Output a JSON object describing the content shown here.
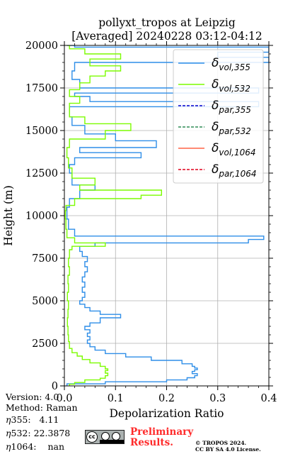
{
  "title": {
    "line1": "pollyxt_tropos at Leipzig",
    "line2": "[Averaged] 20240228 03:12-04:12"
  },
  "footer": {
    "version": "Version: 4.0",
    "method": "Method: Raman",
    "eta355_label": "355:",
    "eta355_value": "4.11",
    "eta532_label": "532:",
    "eta532_value": "22.3878",
    "eta1064_label": "1064:",
    "eta1064_value": "nan",
    "preliminary_line1": "Preliminary",
    "preliminary_line2": "Results.",
    "copyright_line1": "© TROPOS 2024.",
    "copyright_line2": "CC BY SA 4.0 License."
  },
  "colors": {
    "vol355": "#2e8ee8",
    "vol532": "#7cfc00",
    "par355": "#0000cd",
    "par532": "#2e8b57",
    "vol1064": "#ff6347",
    "par1064": "#e0001b"
  },
  "chart_data": {
    "type": "line",
    "xlabel": "Depolarization Ratio",
    "ylabel": "Height (m)",
    "xlim": [
      0,
      0.4
    ],
    "ylim": [
      0,
      20000
    ],
    "xticks": [
      "0.0",
      "0.1",
      "0.2",
      "0.3",
      "0.4"
    ],
    "yticks": [
      "0",
      "2500",
      "5000",
      "7500",
      "10000",
      "12500",
      "15000",
      "17500",
      "20000"
    ],
    "grid": true,
    "legend_position": "top-right",
    "legend": [
      {
        "key": "vol355",
        "base": "δ",
        "sub": "vol,355",
        "style": "solid"
      },
      {
        "key": "vol532",
        "base": "δ",
        "sub": "vol,532",
        "style": "solid"
      },
      {
        "key": "par355",
        "base": "δ",
        "sub": "par,355",
        "style": "dashed"
      },
      {
        "key": "par532",
        "base": "δ",
        "sub": "par,532",
        "style": "dashed"
      },
      {
        "key": "vol1064",
        "base": "δ",
        "sub": "vol,1064",
        "style": "solid"
      },
      {
        "key": "par1064",
        "base": "δ",
        "sub": "par,1064",
        "style": "dashed"
      }
    ],
    "series": [
      {
        "key": "vol355",
        "points": [
          [
            0.005,
            0
          ],
          [
            0.08,
            120
          ],
          [
            0.2,
            240
          ],
          [
            0.24,
            350
          ],
          [
            0.255,
            480
          ],
          [
            0.26,
            600
          ],
          [
            0.25,
            720
          ],
          [
            0.255,
            850
          ],
          [
            0.26,
            950
          ],
          [
            0.255,
            1050
          ],
          [
            0.25,
            1150
          ],
          [
            0.23,
            1300
          ],
          [
            0.17,
            1500
          ],
          [
            0.12,
            1700
          ],
          [
            0.08,
            1900
          ],
          [
            0.06,
            2100
          ],
          [
            0.05,
            2300
          ],
          [
            0.045,
            2500
          ],
          [
            0.05,
            2700
          ],
          [
            0.045,
            2900
          ],
          [
            0.05,
            3100
          ],
          [
            0.04,
            3300
          ],
          [
            0.05,
            3500
          ],
          [
            0.07,
            3700
          ],
          [
            0.11,
            4000
          ],
          [
            0.07,
            4200
          ],
          [
            0.05,
            4400
          ],
          [
            0.04,
            4600
          ],
          [
            0.03,
            4800
          ],
          [
            0.035,
            5000
          ],
          [
            0.04,
            5200
          ],
          [
            0.035,
            5500
          ],
          [
            0.04,
            5800
          ],
          [
            0.035,
            6100
          ],
          [
            0.04,
            6400
          ],
          [
            0.045,
            6700
          ],
          [
            0.04,
            7000
          ],
          [
            0.045,
            7300
          ],
          [
            0.035,
            7600
          ],
          [
            0.03,
            7900
          ],
          [
            0.06,
            8200
          ],
          [
            0.36,
            8400
          ],
          [
            0.39,
            8600
          ],
          [
            0.02,
            8800
          ],
          [
            0.008,
            9200
          ],
          [
            0.005,
            9800
          ],
          [
            0.01,
            10500
          ],
          [
            0.03,
            11000
          ],
          [
            0.06,
            11500
          ],
          [
            0.015,
            11800
          ],
          [
            0.01,
            12500
          ],
          [
            0.02,
            13000
          ],
          [
            0.15,
            13400
          ],
          [
            0.03,
            13700
          ],
          [
            0.18,
            14000
          ],
          [
            0.1,
            14400
          ],
          [
            0.04,
            14800
          ],
          [
            0.015,
            15300
          ],
          [
            0.01,
            15800
          ],
          [
            0.38,
            16400
          ],
          [
            0.05,
            16700
          ],
          [
            0.02,
            17000
          ],
          [
            0.38,
            17200
          ],
          [
            0.03,
            17500
          ],
          [
            0.015,
            18000
          ],
          [
            0.02,
            18500
          ],
          [
            0.4,
            19000
          ],
          [
            0.3,
            19300
          ],
          [
            0.4,
            19600
          ],
          [
            0.02,
            19900
          ],
          [
            0.005,
            20000
          ]
        ]
      },
      {
        "key": "vol532",
        "points": [
          [
            0.01,
            0
          ],
          [
            0.02,
            100
          ],
          [
            0.04,
            200
          ],
          [
            0.07,
            350
          ],
          [
            0.08,
            450
          ],
          [
            0.085,
            600
          ],
          [
            0.08,
            750
          ],
          [
            0.085,
            900
          ],
          [
            0.08,
            1000
          ],
          [
            0.07,
            1150
          ],
          [
            0.05,
            1350
          ],
          [
            0.035,
            1550
          ],
          [
            0.025,
            1750
          ],
          [
            0.015,
            1950
          ],
          [
            0.01,
            2200
          ],
          [
            0.008,
            2600
          ],
          [
            0.007,
            3000
          ],
          [
            0.006,
            3500
          ],
          [
            0.007,
            4000
          ],
          [
            0.008,
            4500
          ],
          [
            0.006,
            5000
          ],
          [
            0.008,
            5500
          ],
          [
            0.007,
            6000
          ],
          [
            0.01,
            6500
          ],
          [
            0.008,
            7000
          ],
          [
            0.01,
            7500
          ],
          [
            0.015,
            8000
          ],
          [
            0.08,
            8200
          ],
          [
            0.02,
            8400
          ],
          [
            0.005,
            8700
          ],
          [
            0.003,
            9200
          ],
          [
            0.002,
            9800
          ],
          [
            0.003,
            10300
          ],
          [
            0.02,
            10600
          ],
          [
            0.15,
            11000
          ],
          [
            0.19,
            11200
          ],
          [
            0.03,
            11500
          ],
          [
            0.06,
            11800
          ],
          [
            0.015,
            12200
          ],
          [
            0.008,
            12800
          ],
          [
            0.005,
            13400
          ],
          [
            0.01,
            14000
          ],
          [
            0.08,
            14500
          ],
          [
            0.13,
            15000
          ],
          [
            0.04,
            15400
          ],
          [
            0.01,
            15800
          ],
          [
            0.01,
            16200
          ],
          [
            0.03,
            16600
          ],
          [
            0.01,
            17000
          ],
          [
            0.03,
            17400
          ],
          [
            0.05,
            17800
          ],
          [
            0.08,
            18200
          ],
          [
            0.11,
            18500
          ],
          [
            0.05,
            18800
          ],
          [
            0.11,
            19200
          ],
          [
            0.04,
            19500
          ],
          [
            0.01,
            19800
          ],
          [
            0.005,
            20000
          ]
        ]
      }
    ]
  }
}
